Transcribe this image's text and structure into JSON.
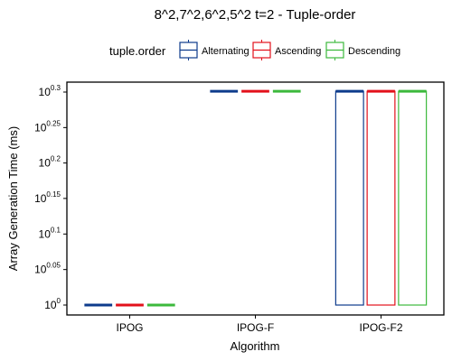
{
  "chart_data": {
    "type": "boxplot",
    "title": "8^2,7^2,6^2,5^2 t=2 - Tuple-order",
    "xlabel": "Algorithm",
    "ylabel": "Array Generation Time (ms)",
    "y_scale": "log10",
    "ylim": [
      1,
      1.995
    ],
    "y_ticks": [
      {
        "base": "10",
        "exp": "0"
      },
      {
        "base": "10",
        "exp": "0.05"
      },
      {
        "base": "10",
        "exp": "0.1"
      },
      {
        "base": "10",
        "exp": "0.15"
      },
      {
        "base": "10",
        "exp": "0.2"
      },
      {
        "base": "10",
        "exp": "0.25"
      },
      {
        "base": "10",
        "exp": "0.3"
      }
    ],
    "y_tick_values": [
      1,
      1.122,
      1.259,
      1.413,
      1.585,
      1.778,
      1.995
    ],
    "categories": [
      "IPOG",
      "IPOG-F",
      "IPOG-F2"
    ],
    "legend": {
      "title": "tuple.order",
      "placement": "top",
      "entries": [
        "Alternating",
        "Ascending",
        "Descending"
      ]
    },
    "series": [
      {
        "name": "Alternating",
        "color": "#0d3b8c",
        "boxes": [
          {
            "min": 1,
            "q1": 1,
            "median": 1,
            "q3": 1,
            "max": 1
          },
          {
            "min": 2,
            "q1": 2,
            "median": 2,
            "q3": 2,
            "max": 2
          },
          {
            "min": 1,
            "q1": 1,
            "median": 2,
            "q3": 2,
            "max": 2
          }
        ]
      },
      {
        "name": "Ascending",
        "color": "#e3111b",
        "boxes": [
          {
            "min": 1,
            "q1": 1,
            "median": 1,
            "q3": 1,
            "max": 1
          },
          {
            "min": 2,
            "q1": 2,
            "median": 2,
            "q3": 2,
            "max": 2
          },
          {
            "min": 1,
            "q1": 1,
            "median": 2,
            "q3": 2,
            "max": 2
          }
        ]
      },
      {
        "name": "Descending",
        "color": "#3cb93c",
        "boxes": [
          {
            "min": 1,
            "q1": 1,
            "median": 1,
            "q3": 1,
            "max": 1
          },
          {
            "min": 2,
            "q1": 2,
            "median": 2,
            "q3": 2,
            "max": 2
          },
          {
            "min": 1,
            "q1": 1,
            "median": 2,
            "q3": 2,
            "max": 2
          }
        ]
      }
    ]
  }
}
